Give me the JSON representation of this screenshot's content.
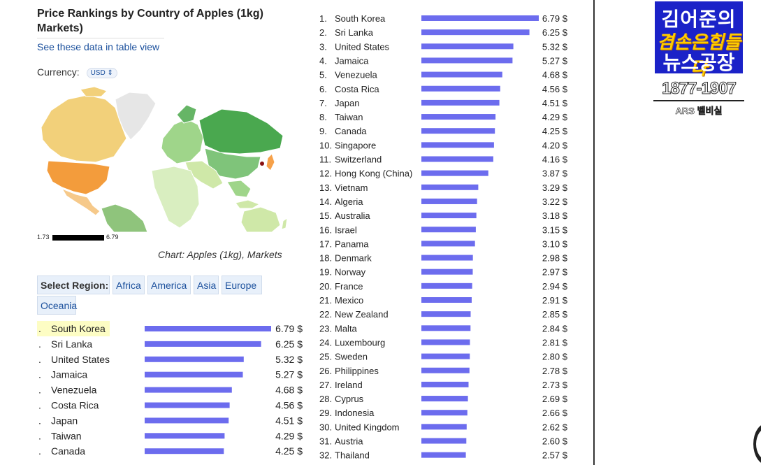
{
  "page": {
    "title_line1": "Price Rankings by Country of Apples (1kg)",
    "title_line2": "Markets)",
    "table_view_link": "See these data in table view",
    "currency_label": "Currency:",
    "currency_value": "USD",
    "scale_min": "1.73",
    "scale_max": "6.79",
    "map_caption": "Chart: Apples (1kg), Markets",
    "select_region_label": "Select Region:",
    "regions": [
      "Africa",
      "America",
      "Asia",
      "Europe",
      "Oceania"
    ]
  },
  "overlay": {
    "logo_line1": "김어준의",
    "logo_line2": "겸손은힘들다",
    "logo_line3": "뉴스공장",
    "phone": "1877-1907",
    "ars": "ARS 벨비실"
  },
  "colors": {
    "bar": "#6c6cee",
    "highlight": "#fdfdc4",
    "link": "#1a4f9c"
  },
  "chart_data": [
    {
      "type": "bar",
      "orientation": "horizontal",
      "unit": "$",
      "categories": [
        "South Korea",
        "Sri Lanka",
        "United States",
        "Jamaica",
        "Venezuela",
        "Costa Rica",
        "Japan",
        "Taiwan",
        "Canada"
      ],
      "values": [
        6.79,
        6.25,
        5.32,
        5.27,
        4.68,
        4.56,
        4.51,
        4.29,
        4.25
      ],
      "value_labels": [
        "6.79 $",
        "6.25 $",
        "5.32 $",
        "5.27 $",
        "4.68 $",
        "4.56 $",
        "4.51 $",
        "4.29 $",
        "4.25 $"
      ],
      "highlighted": "South Korea",
      "xlim": [
        0,
        6.79
      ]
    },
    {
      "type": "bar",
      "orientation": "horizontal",
      "unit": "$",
      "ranks": [
        "1.",
        "2.",
        "3.",
        "4.",
        "5.",
        "6.",
        "7.",
        "8.",
        "9.",
        "10.",
        "11.",
        "12.",
        "13.",
        "14.",
        "15.",
        "16.",
        "17.",
        "18.",
        "19.",
        "20.",
        "21.",
        "22.",
        "23.",
        "24.",
        "25.",
        "26.",
        "27.",
        "28.",
        "29.",
        "30.",
        "31.",
        "32."
      ],
      "categories": [
        "South Korea",
        "Sri Lanka",
        "United States",
        "Jamaica",
        "Venezuela",
        "Costa Rica",
        "Japan",
        "Taiwan",
        "Canada",
        "Singapore",
        "Switzerland",
        "Hong Kong (China)",
        "Vietnam",
        "Algeria",
        "Australia",
        "Israel",
        "Panama",
        "Denmark",
        "Norway",
        "France",
        "Mexico",
        "New Zealand",
        "Malta",
        "Luxembourg",
        "Sweden",
        "Philippines",
        "Ireland",
        "Cyprus",
        "Indonesia",
        "United Kingdom",
        "Austria",
        "Thailand"
      ],
      "values": [
        6.79,
        6.25,
        5.32,
        5.27,
        4.68,
        4.56,
        4.51,
        4.29,
        4.25,
        4.2,
        4.16,
        3.87,
        3.29,
        3.22,
        3.18,
        3.15,
        3.1,
        2.98,
        2.97,
        2.94,
        2.91,
        2.85,
        2.84,
        2.81,
        2.8,
        2.78,
        2.73,
        2.69,
        2.66,
        2.62,
        2.6,
        2.57
      ],
      "value_labels": [
        "6.79 $",
        "6.25 $",
        "5.32 $",
        "5.27 $",
        "4.68 $",
        "4.56 $",
        "4.51 $",
        "4.29 $",
        "4.25 $",
        "4.20 $",
        "4.16 $",
        "3.87 $",
        "3.29 $",
        "3.22 $",
        "3.18 $",
        "3.15 $",
        "3.10 $",
        "2.98 $",
        "2.97 $",
        "2.94 $",
        "2.91 $",
        "2.85 $",
        "2.84 $",
        "2.81 $",
        "2.80 $",
        "2.78 $",
        "2.73 $",
        "2.69 $",
        "2.66 $",
        "2.62 $",
        "2.60 $",
        "2.57 $"
      ],
      "xlim": [
        0,
        6.79
      ]
    }
  ]
}
